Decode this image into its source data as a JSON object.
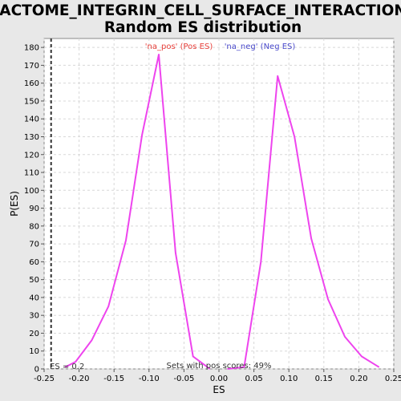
{
  "chart_data": {
    "type": "line",
    "title_line1": "REACTOME_INTEGRIN_CELL_SURFACE_INTERACTIONS:",
    "title_line2": "Random ES distribution",
    "xlabel": "ES",
    "ylabel": "P(ES)",
    "xlim": [
      -0.25,
      0.25
    ],
    "ylim": [
      0,
      185
    ],
    "xticks": [
      -0.25,
      -0.2,
      -0.15,
      -0.1,
      -0.05,
      0.0,
      0.05,
      0.1,
      0.15,
      0.2,
      0.25
    ],
    "xtick_labels": [
      "-0.25",
      "-0.20",
      "-0.15",
      "-0.10",
      "-0.05",
      "0.00",
      "0.05",
      "0.10",
      "0.15",
      "0.20",
      "0.25"
    ],
    "yticks": [
      0,
      10,
      20,
      30,
      40,
      50,
      60,
      70,
      80,
      90,
      100,
      110,
      120,
      130,
      140,
      150,
      160,
      170,
      180
    ],
    "grid": true,
    "legend": [
      {
        "label": "'na_pos' (Pos ES)",
        "color": "#e8413c"
      },
      {
        "label": "'na_neg' (Neg ES)",
        "color": "#4a4acb"
      }
    ],
    "series": [
      {
        "color": "#ee44ee",
        "x": [
          -0.22,
          -0.205,
          -0.182,
          -0.158,
          -0.133,
          -0.11,
          -0.086,
          -0.062,
          -0.037,
          -0.013
        ],
        "y": [
          1,
          4,
          16,
          35,
          72,
          131,
          176,
          65,
          7,
          0
        ]
      },
      {
        "color": "#ee44ee",
        "x": [
          0.012,
          0.036,
          0.06,
          0.084,
          0.108,
          0.132,
          0.156,
          0.18,
          0.204,
          0.229
        ],
        "y": [
          0,
          1,
          60,
          164,
          130,
          73,
          39,
          18,
          7,
          1
        ]
      }
    ],
    "vline": {
      "x": -0.24,
      "style": "dashed",
      "color": "#333333"
    },
    "annotation_es": "ES = 0.2",
    "annotation_sets": "Sets with pos scores: 49%"
  }
}
